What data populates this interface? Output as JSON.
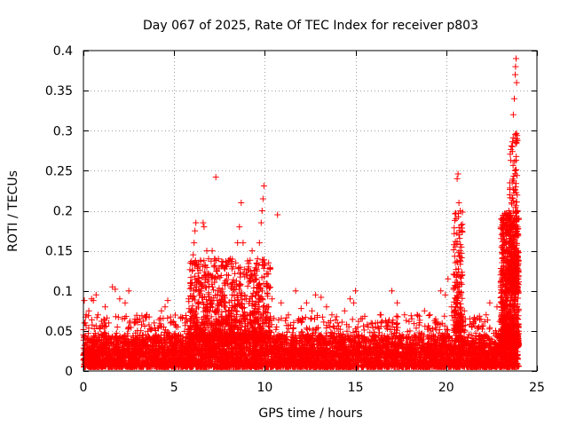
{
  "chart_data": {
    "type": "scatter",
    "title": "Day 067 of 2025, Rate Of TEC Index for receiver p803",
    "xlabel": "GPS time / hours",
    "ylabel": "ROTI / TECUs",
    "xlim": [
      0,
      25
    ],
    "ylim": [
      0,
      0.4
    ],
    "xticks": [
      0,
      5,
      10,
      15,
      20,
      25
    ],
    "yticks": [
      0,
      0.05,
      0.1,
      0.15,
      0.2,
      0.25,
      0.3,
      0.35,
      0.4
    ],
    "xtick_labels": [
      "0",
      "5",
      "10",
      "15",
      "20",
      "25"
    ],
    "ytick_labels": [
      "0",
      "0.05",
      "0.1",
      "0.15",
      "0.2",
      "0.25",
      "0.3",
      "0.35",
      "0.4"
    ],
    "grid": true,
    "marker": "plus",
    "marker_color": "#ff0000",
    "series": [
      {
        "name": "",
        "points": [
          [
            0.05,
            0.088
          ],
          [
            0.1,
            0.06
          ],
          [
            0.15,
            0.07
          ],
          [
            0.3,
            0.075
          ],
          [
            0.45,
            0.09
          ],
          [
            0.55,
            0.088
          ],
          [
            0.7,
            0.095
          ],
          [
            0.8,
            0.07
          ],
          [
            1.0,
            0.062
          ],
          [
            1.2,
            0.08
          ],
          [
            1.4,
            0.06
          ],
          [
            1.6,
            0.105
          ],
          [
            1.75,
            0.102
          ],
          [
            2.0,
            0.09
          ],
          [
            2.3,
            0.085
          ],
          [
            2.5,
            0.1
          ],
          [
            2.8,
            0.06
          ],
          [
            3.1,
            0.065
          ],
          [
            3.5,
            0.07
          ],
          [
            3.9,
            0.06
          ],
          [
            4.3,
            0.075
          ],
          [
            4.5,
            0.08
          ],
          [
            4.65,
            0.088
          ],
          [
            4.8,
            0.06
          ],
          [
            5.2,
            0.055
          ],
          [
            5.6,
            0.06
          ],
          [
            5.8,
            0.09
          ],
          [
            5.9,
            0.11
          ],
          [
            6.0,
            0.125
          ],
          [
            6.05,
            0.145
          ],
          [
            6.1,
            0.16
          ],
          [
            6.15,
            0.175
          ],
          [
            6.2,
            0.185
          ],
          [
            6.3,
            0.13
          ],
          [
            6.5,
            0.1
          ],
          [
            6.6,
            0.185
          ],
          [
            6.65,
            0.18
          ],
          [
            6.8,
            0.15
          ],
          [
            6.9,
            0.14
          ],
          [
            7.0,
            0.12
          ],
          [
            7.1,
            0.15
          ],
          [
            7.2,
            0.13
          ],
          [
            7.3,
            0.242
          ],
          [
            7.4,
            0.1
          ],
          [
            7.6,
            0.085
          ],
          [
            7.9,
            0.12
          ],
          [
            8.1,
            0.14
          ],
          [
            8.2,
            0.095
          ],
          [
            8.4,
            0.135
          ],
          [
            8.5,
            0.16
          ],
          [
            8.6,
            0.18
          ],
          [
            8.7,
            0.21
          ],
          [
            8.8,
            0.16
          ],
          [
            8.9,
            0.09
          ],
          [
            9.1,
            0.13
          ],
          [
            9.3,
            0.15
          ],
          [
            9.5,
            0.115
          ],
          [
            9.6,
            0.14
          ],
          [
            9.7,
            0.16
          ],
          [
            9.8,
            0.185
          ],
          [
            9.85,
            0.2
          ],
          [
            9.9,
            0.215
          ],
          [
            9.95,
            0.231
          ],
          [
            10.1,
            0.105
          ],
          [
            10.4,
            0.09
          ],
          [
            10.7,
            0.195
          ],
          [
            10.9,
            0.085
          ],
          [
            11.3,
            0.07
          ],
          [
            11.7,
            0.1
          ],
          [
            12.0,
            0.078
          ],
          [
            12.3,
            0.085
          ],
          [
            12.6,
            0.075
          ],
          [
            12.8,
            0.095
          ],
          [
            13.1,
            0.092
          ],
          [
            13.4,
            0.08
          ],
          [
            13.7,
            0.07
          ],
          [
            14.0,
            0.06
          ],
          [
            14.4,
            0.075
          ],
          [
            14.7,
            0.09
          ],
          [
            14.9,
            0.085
          ],
          [
            15.0,
            0.1
          ],
          [
            15.3,
            0.065
          ],
          [
            15.7,
            0.055
          ],
          [
            16.1,
            0.06
          ],
          [
            16.4,
            0.07
          ],
          [
            16.7,
            0.06
          ],
          [
            17.0,
            0.1
          ],
          [
            17.3,
            0.085
          ],
          [
            17.7,
            0.07
          ],
          [
            18.1,
            0.065
          ],
          [
            18.4,
            0.07
          ],
          [
            18.8,
            0.075
          ],
          [
            19.1,
            0.07
          ],
          [
            19.4,
            0.06
          ],
          [
            19.7,
            0.1
          ],
          [
            19.95,
            0.095
          ],
          [
            20.1,
            0.115
          ],
          [
            20.3,
            0.08
          ],
          [
            20.45,
            0.12
          ],
          [
            20.5,
            0.155
          ],
          [
            20.55,
            0.19
          ],
          [
            20.6,
            0.24
          ],
          [
            20.65,
            0.246
          ],
          [
            20.7,
            0.21
          ],
          [
            20.75,
            0.15
          ],
          [
            20.8,
            0.11
          ],
          [
            21.0,
            0.075
          ],
          [
            21.3,
            0.065
          ],
          [
            21.5,
            0.06
          ],
          [
            21.8,
            0.055
          ],
          [
            22.2,
            0.07
          ],
          [
            22.4,
            0.085
          ],
          [
            22.8,
            0.08
          ],
          [
            23.0,
            0.12
          ],
          [
            23.1,
            0.1
          ],
          [
            23.2,
            0.14
          ],
          [
            23.3,
            0.16
          ],
          [
            23.4,
            0.13
          ],
          [
            23.45,
            0.2
          ],
          [
            23.5,
            0.22
          ],
          [
            23.55,
            0.17
          ],
          [
            23.6,
            0.21
          ],
          [
            23.65,
            0.28
          ],
          [
            23.7,
            0.32
          ],
          [
            23.75,
            0.34
          ],
          [
            23.8,
            0.37
          ],
          [
            23.82,
            0.38
          ],
          [
            23.85,
            0.39
          ],
          [
            23.88,
            0.36
          ],
          [
            23.9,
            0.29
          ],
          [
            23.93,
            0.2
          ],
          [
            23.95,
            0.15
          ]
        ]
      }
    ],
    "noise": {
      "bands": [
        {
          "x": [
            0,
            24
          ],
          "y": [
            0.005,
            0.045
          ],
          "density": 5200
        },
        {
          "x": [
            0,
            24
          ],
          "y": [
            0.02,
            0.07
          ],
          "density": 1400
        },
        {
          "x": [
            5.8,
            10.3
          ],
          "y": [
            0.04,
            0.14
          ],
          "density": 900
        },
        {
          "x": [
            20.4,
            20.9
          ],
          "y": [
            0.05,
            0.2
          ],
          "density": 160
        },
        {
          "x": [
            23.0,
            24.0
          ],
          "y": [
            0.03,
            0.2
          ],
          "density": 900
        },
        {
          "x": [
            23.5,
            23.95
          ],
          "y": [
            0.1,
            0.3
          ],
          "density": 220
        }
      ]
    }
  }
}
